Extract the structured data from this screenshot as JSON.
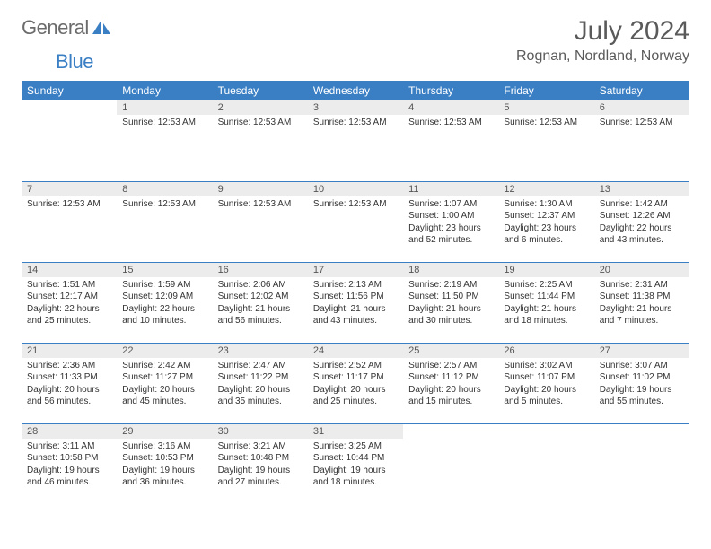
{
  "brand": {
    "name_part1": "General",
    "name_part2": "Blue"
  },
  "title": {
    "month_year": "July 2024",
    "location": "Rognan, Nordland, Norway"
  },
  "colors": {
    "header_bg": "#3a7fc4",
    "header_text": "#ffffff",
    "daynum_bg": "#ececec",
    "border": "#3a7fc4",
    "logo_gray": "#6b6b6b",
    "logo_blue": "#3a7fc4"
  },
  "day_headers": [
    "Sunday",
    "Monday",
    "Tuesday",
    "Wednesday",
    "Thursday",
    "Friday",
    "Saturday"
  ],
  "weeks": [
    [
      null,
      {
        "n": "1",
        "lines": [
          "Sunrise: 12:53 AM"
        ]
      },
      {
        "n": "2",
        "lines": [
          "Sunrise: 12:53 AM"
        ]
      },
      {
        "n": "3",
        "lines": [
          "Sunrise: 12:53 AM"
        ]
      },
      {
        "n": "4",
        "lines": [
          "Sunrise: 12:53 AM"
        ]
      },
      {
        "n": "5",
        "lines": [
          "Sunrise: 12:53 AM"
        ]
      },
      {
        "n": "6",
        "lines": [
          "Sunrise: 12:53 AM"
        ]
      }
    ],
    [
      {
        "n": "7",
        "lines": [
          "Sunrise: 12:53 AM"
        ]
      },
      {
        "n": "8",
        "lines": [
          "Sunrise: 12:53 AM"
        ]
      },
      {
        "n": "9",
        "lines": [
          "Sunrise: 12:53 AM"
        ]
      },
      {
        "n": "10",
        "lines": [
          "Sunrise: 12:53 AM"
        ]
      },
      {
        "n": "11",
        "lines": [
          "Sunrise: 1:07 AM",
          "Sunset: 1:00 AM",
          "Daylight: 23 hours",
          "and 52 minutes."
        ]
      },
      {
        "n": "12",
        "lines": [
          "Sunrise: 1:30 AM",
          "Sunset: 12:37 AM",
          "Daylight: 23 hours",
          "and 6 minutes."
        ]
      },
      {
        "n": "13",
        "lines": [
          "Sunrise: 1:42 AM",
          "Sunset: 12:26 AM",
          "Daylight: 22 hours",
          "and 43 minutes."
        ]
      }
    ],
    [
      {
        "n": "14",
        "lines": [
          "Sunrise: 1:51 AM",
          "Sunset: 12:17 AM",
          "Daylight: 22 hours",
          "and 25 minutes."
        ]
      },
      {
        "n": "15",
        "lines": [
          "Sunrise: 1:59 AM",
          "Sunset: 12:09 AM",
          "Daylight: 22 hours",
          "and 10 minutes."
        ]
      },
      {
        "n": "16",
        "lines": [
          "Sunrise: 2:06 AM",
          "Sunset: 12:02 AM",
          "Daylight: 21 hours",
          "and 56 minutes."
        ]
      },
      {
        "n": "17",
        "lines": [
          "Sunrise: 2:13 AM",
          "Sunset: 11:56 PM",
          "Daylight: 21 hours",
          "and 43 minutes."
        ]
      },
      {
        "n": "18",
        "lines": [
          "Sunrise: 2:19 AM",
          "Sunset: 11:50 PM",
          "Daylight: 21 hours",
          "and 30 minutes."
        ]
      },
      {
        "n": "19",
        "lines": [
          "Sunrise: 2:25 AM",
          "Sunset: 11:44 PM",
          "Daylight: 21 hours",
          "and 18 minutes."
        ]
      },
      {
        "n": "20",
        "lines": [
          "Sunrise: 2:31 AM",
          "Sunset: 11:38 PM",
          "Daylight: 21 hours",
          "and 7 minutes."
        ]
      }
    ],
    [
      {
        "n": "21",
        "lines": [
          "Sunrise: 2:36 AM",
          "Sunset: 11:33 PM",
          "Daylight: 20 hours",
          "and 56 minutes."
        ]
      },
      {
        "n": "22",
        "lines": [
          "Sunrise: 2:42 AM",
          "Sunset: 11:27 PM",
          "Daylight: 20 hours",
          "and 45 minutes."
        ]
      },
      {
        "n": "23",
        "lines": [
          "Sunrise: 2:47 AM",
          "Sunset: 11:22 PM",
          "Daylight: 20 hours",
          "and 35 minutes."
        ]
      },
      {
        "n": "24",
        "lines": [
          "Sunrise: 2:52 AM",
          "Sunset: 11:17 PM",
          "Daylight: 20 hours",
          "and 25 minutes."
        ]
      },
      {
        "n": "25",
        "lines": [
          "Sunrise: 2:57 AM",
          "Sunset: 11:12 PM",
          "Daylight: 20 hours",
          "and 15 minutes."
        ]
      },
      {
        "n": "26",
        "lines": [
          "Sunrise: 3:02 AM",
          "Sunset: 11:07 PM",
          "Daylight: 20 hours",
          "and 5 minutes."
        ]
      },
      {
        "n": "27",
        "lines": [
          "Sunrise: 3:07 AM",
          "Sunset: 11:02 PM",
          "Daylight: 19 hours",
          "and 55 minutes."
        ]
      }
    ],
    [
      {
        "n": "28",
        "lines": [
          "Sunrise: 3:11 AM",
          "Sunset: 10:58 PM",
          "Daylight: 19 hours",
          "and 46 minutes."
        ]
      },
      {
        "n": "29",
        "lines": [
          "Sunrise: 3:16 AM",
          "Sunset: 10:53 PM",
          "Daylight: 19 hours",
          "and 36 minutes."
        ]
      },
      {
        "n": "30",
        "lines": [
          "Sunrise: 3:21 AM",
          "Sunset: 10:48 PM",
          "Daylight: 19 hours",
          "and 27 minutes."
        ]
      },
      {
        "n": "31",
        "lines": [
          "Sunrise: 3:25 AM",
          "Sunset: 10:44 PM",
          "Daylight: 19 hours",
          "and 18 minutes."
        ]
      },
      null,
      null,
      null
    ]
  ]
}
